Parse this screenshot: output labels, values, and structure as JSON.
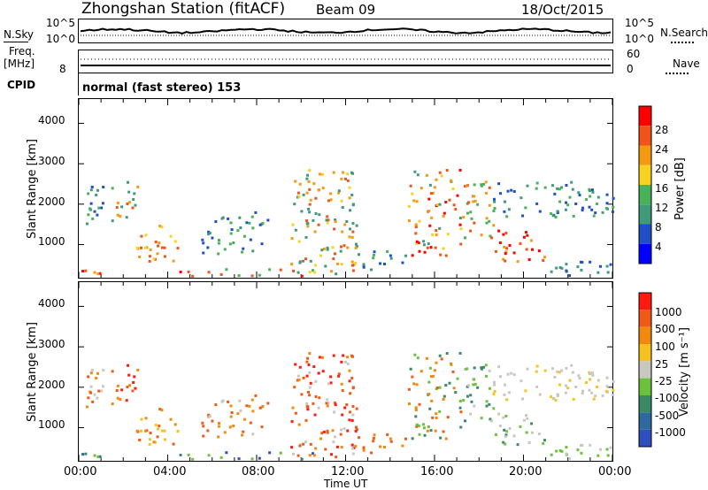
{
  "header": {
    "title": "Zhongshan Station (fitACF)",
    "beam": "Beam 09",
    "date": "18/Oct/2015"
  },
  "top_panels": {
    "nsky_label": "N.Sky",
    "nsky_ticks": [
      "10^5",
      "10^0"
    ],
    "nsearch_label": "N.Search",
    "nsearch_ticks": [
      "10^5",
      "10^0"
    ],
    "freq_label": "Freq.",
    "freq_unit": "[MHz]",
    "freq_ticks": [
      "8"
    ],
    "nave_label": "Nave",
    "nave_ticks": [
      "60",
      "0"
    ],
    "cpid_label": "CPID",
    "cpid_text": "normal (fast stereo) 153"
  },
  "chart_data": [
    {
      "type": "heatmap",
      "name": "power-panel",
      "ylabel": "Slant Range [km]",
      "yticks": [
        "4000",
        "3000",
        "2000",
        "1000"
      ],
      "ylim": [
        180,
        4600
      ],
      "xlim_hours": [
        0,
        24
      ],
      "colorbar_label": "Power [dB]",
      "colorbar_ticks": [
        "28",
        "24",
        "20",
        "16",
        "12",
        "8",
        "4"
      ],
      "colors": [
        "#0000ff",
        "#2050c8",
        "#3f9a7a",
        "#49b15a",
        "#f7d21e",
        "#f59a10",
        "#f0541a",
        "#ff0000"
      ]
    },
    {
      "type": "heatmap",
      "name": "velocity-panel",
      "ylabel": "Slant Range [km]",
      "yticks": [
        "4000",
        "3000",
        "2000",
        "1000"
      ],
      "ylim": [
        180,
        4600
      ],
      "xlim_hours": [
        0,
        24
      ],
      "colorbar_label": "Velocity [m s⁻¹]",
      "colorbar_ticks": [
        "1000",
        "500",
        "100",
        "25",
        "-25",
        "-100",
        "-500",
        "-1000"
      ],
      "colors": [
        "#2f4fbf",
        "#2e6aa0",
        "#3a8a66",
        "#6cc13c",
        "#c8c8c0",
        "#f6c21f",
        "#f2890f",
        "#f05a18",
        "#ff1a10"
      ]
    }
  ],
  "x_axis": {
    "ticks": [
      "00:00",
      "04:00",
      "08:00",
      "12:00",
      "16:00",
      "20:00",
      "00:00"
    ],
    "label": "Time UT"
  }
}
